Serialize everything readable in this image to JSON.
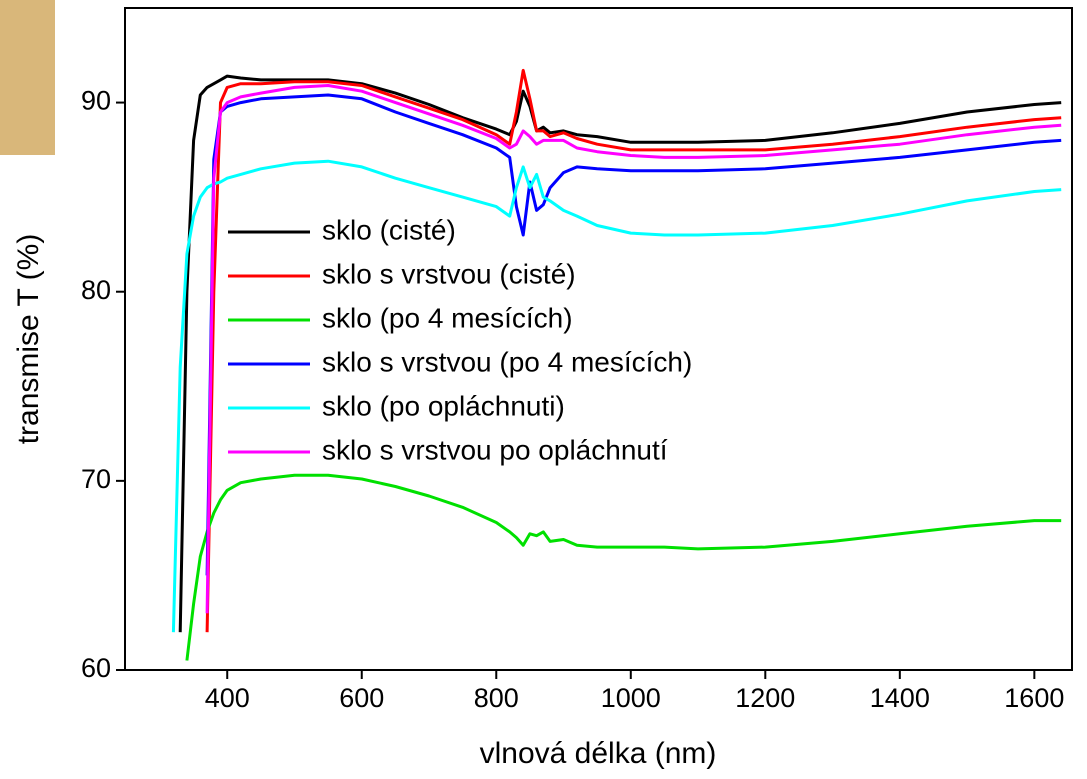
{
  "chart_data": {
    "type": "line",
    "xlabel": "vlnová délka (nm)",
    "ylabel": "transmise T (%)",
    "x": [
      320,
      330,
      340,
      350,
      360,
      370,
      380,
      390,
      400,
      420,
      450,
      500,
      550,
      600,
      650,
      700,
      750,
      800,
      820,
      830,
      840,
      850,
      860,
      870,
      880,
      900,
      920,
      950,
      1000,
      1050,
      1100,
      1200,
      1300,
      1400,
      1500,
      1600,
      1640
    ],
    "series": [
      {
        "name": "sklo (cisté)",
        "color": "#000000",
        "values": [
          null,
          62,
          80,
          88,
          90.4,
          90.8,
          91.0,
          91.2,
          91.4,
          91.3,
          91.2,
          91.2,
          91.2,
          91.0,
          90.5,
          89.9,
          89.2,
          88.6,
          88.3,
          89.0,
          90.6,
          89.8,
          88.5,
          88.7,
          88.4,
          88.5,
          88.3,
          88.2,
          87.9,
          87.9,
          87.9,
          88.0,
          88.4,
          88.9,
          89.5,
          89.9,
          90.0
        ]
      },
      {
        "name": "sklo s vrstvou (cisté)",
        "color": "#ff0000",
        "values": [
          null,
          null,
          null,
          null,
          null,
          62,
          80,
          90.0,
          90.8,
          91.0,
          91.0,
          91.1,
          91.1,
          90.9,
          90.3,
          89.7,
          89.1,
          88.3,
          87.8,
          89.5,
          91.7,
          90.2,
          88.5,
          88.5,
          88.2,
          88.4,
          88.1,
          87.8,
          87.5,
          87.5,
          87.5,
          87.5,
          87.8,
          88.2,
          88.7,
          89.1,
          89.2
        ]
      },
      {
        "name": "sklo (po 4 mesících)",
        "color": "#00e000",
        "values": [
          null,
          null,
          60.5,
          63.5,
          66,
          67.3,
          68.3,
          69.0,
          69.5,
          69.9,
          70.1,
          70.3,
          70.3,
          70.1,
          69.7,
          69.2,
          68.6,
          67.8,
          67.3,
          67.0,
          66.6,
          67.2,
          67.1,
          67.3,
          66.8,
          66.9,
          66.6,
          66.5,
          66.5,
          66.5,
          66.4,
          66.5,
          66.8,
          67.2,
          67.6,
          67.9,
          67.9
        ]
      },
      {
        "name": "sklo s vrstvou (po 4 mesících)",
        "color": "#0000ff",
        "values": [
          null,
          null,
          null,
          null,
          null,
          65,
          87,
          89.5,
          89.8,
          90.0,
          90.2,
          90.3,
          90.4,
          90.2,
          89.5,
          88.9,
          88.3,
          87.6,
          87.1,
          84.5,
          83.0,
          85.8,
          84.3,
          84.6,
          85.5,
          86.3,
          86.6,
          86.5,
          86.4,
          86.4,
          86.4,
          86.5,
          86.8,
          87.1,
          87.5,
          87.9,
          88.0
        ]
      },
      {
        "name": "sklo (po opláchnuti)",
        "color": "#00ffff",
        "values": [
          62,
          76,
          82,
          84,
          85,
          85.5,
          85.7,
          85.8,
          86.0,
          86.2,
          86.5,
          86.8,
          86.9,
          86.6,
          86.0,
          85.5,
          85.0,
          84.5,
          84.0,
          85.5,
          86.6,
          85.5,
          86.2,
          85.0,
          84.8,
          84.3,
          84.0,
          83.5,
          83.1,
          83.0,
          83.0,
          83.1,
          83.5,
          84.1,
          84.8,
          85.3,
          85.4
        ]
      },
      {
        "name": "sklo s vrstvou po opláchnutí",
        "color": "#ff00ff",
        "values": [
          null,
          null,
          null,
          null,
          null,
          63,
          86,
          89.5,
          90.0,
          90.3,
          90.5,
          90.8,
          90.9,
          90.6,
          90.0,
          89.4,
          88.8,
          88.1,
          87.6,
          87.8,
          88.5,
          88.2,
          87.8,
          88.0,
          88.0,
          88.0,
          87.6,
          87.4,
          87.2,
          87.1,
          87.1,
          87.2,
          87.5,
          87.8,
          88.3,
          88.7,
          88.8
        ]
      }
    ],
    "xlim": [
      248,
      1656
    ],
    "xticks": [
      400,
      600,
      800,
      1000,
      1200,
      1400,
      1600
    ],
    "ylim": [
      60,
      95
    ],
    "yticks": [
      60,
      70,
      80,
      90
    ],
    "legend": "center-left"
  }
}
